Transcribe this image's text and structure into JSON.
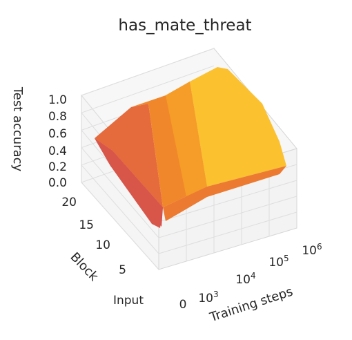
{
  "chart_data": {
    "type": "surface",
    "title": "has_mate_threat",
    "xlabel": "Training steps",
    "ylabel": "Block",
    "zlabel": "Test accuracy",
    "x_scale": "log (0 shown at left end)",
    "x_ticks": [
      {
        "value": 0,
        "label": "0"
      },
      {
        "value": 1000,
        "base": "10",
        "exp": "3"
      },
      {
        "value": 10000,
        "base": "10",
        "exp": "4"
      },
      {
        "value": 100000,
        "base": "10",
        "exp": "5"
      },
      {
        "value": 1000000,
        "base": "10",
        "exp": "6"
      }
    ],
    "y_ticks": [
      "Input",
      "5",
      "10",
      "15",
      "20"
    ],
    "z_ticks": [
      "0.0",
      "0.2",
      "0.4",
      "0.6",
      "0.8",
      "1.0"
    ],
    "zlim": [
      0,
      1
    ],
    "grid": true,
    "colormap": "inferno-like (red → orange → yellow)",
    "colors": {
      "low": "#d4504a",
      "mid": "#f08c28",
      "high": "#fbc330",
      "grid": "#dddddd",
      "pane": "#f2f2f2"
    },
    "approx_accuracy_levels": {
      "x_axis_points": [
        "0",
        "10^3",
        "10^4",
        "10^5",
        "10^6"
      ],
      "block_rows": {
        "Input": [
          0.5,
          0.5,
          0.5,
          0.5,
          0.5
        ],
        "5": [
          0.5,
          0.55,
          0.6,
          0.65,
          0.68
        ],
        "10": [
          0.5,
          0.65,
          0.75,
          0.82,
          0.85
        ],
        "15": [
          0.5,
          0.7,
          0.82,
          0.9,
          0.93
        ],
        "20": [
          0.5,
          0.72,
          0.85,
          0.92,
          0.95
        ]
      }
    }
  }
}
